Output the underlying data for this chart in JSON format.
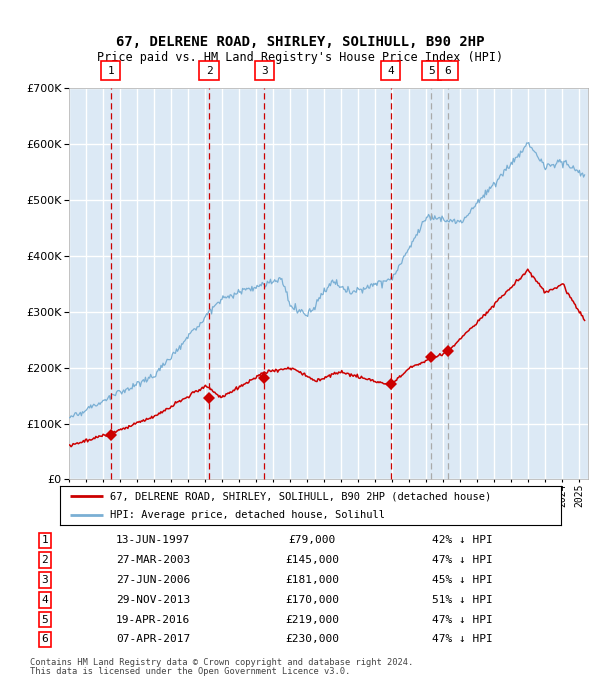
{
  "title": "67, DELRENE ROAD, SHIRLEY, SOLIHULL, B90 2HP",
  "subtitle": "Price paid vs. HM Land Registry's House Price Index (HPI)",
  "footer_line1": "Contains HM Land Registry data © Crown copyright and database right 2024.",
  "footer_line2": "This data is licensed under the Open Government Licence v3.0.",
  "legend_red": "67, DELRENE ROAD, SHIRLEY, SOLIHULL, B90 2HP (detached house)",
  "legend_blue": "HPI: Average price, detached house, Solihull",
  "sales": [
    {
      "num": 1,
      "date": "13-JUN-1997",
      "price": 79000,
      "pct": "42% ↓ HPI",
      "year": 1997.45
    },
    {
      "num": 2,
      "date": "27-MAR-2003",
      "price": 145000,
      "pct": "47% ↓ HPI",
      "year": 2003.23
    },
    {
      "num": 3,
      "date": "27-JUN-2006",
      "price": 181000,
      "pct": "45% ↓ HPI",
      "year": 2006.48
    },
    {
      "num": 4,
      "date": "29-NOV-2013",
      "price": 170000,
      "pct": "51% ↓ HPI",
      "year": 2013.91
    },
    {
      "num": 5,
      "date": "19-APR-2016",
      "price": 219000,
      "pct": "47% ↓ HPI",
      "year": 2016.3
    },
    {
      "num": 6,
      "date": "07-APR-2017",
      "price": 230000,
      "pct": "47% ↓ HPI",
      "year": 2017.27
    }
  ],
  "plot_bg_color": "#dce9f5",
  "grid_color": "#ffffff",
  "red_line_color": "#cc0000",
  "blue_line_color": "#7aafd4",
  "dashed_red_color": "#cc0000",
  "dashed_gray_color": "#aaaaaa",
  "ylim": [
    0,
    700000
  ],
  "xlim_start": 1995,
  "xlim_end": 2025.5
}
